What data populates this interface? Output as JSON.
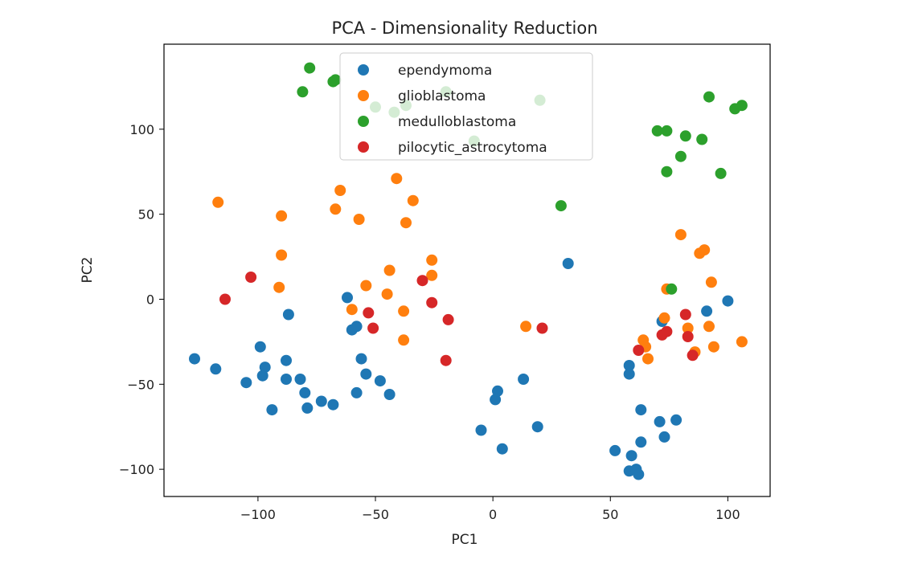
{
  "chart_data": {
    "type": "scatter",
    "title": "PCA - Dimensionality Reduction",
    "xlabel": "PC1",
    "ylabel": "PC2",
    "xlim": [
      -140,
      118
    ],
    "ylim": [
      -116,
      150
    ],
    "xticks": [
      -100,
      -50,
      0,
      50,
      100
    ],
    "yticks": [
      -100,
      -50,
      0,
      50,
      100
    ],
    "xtick_labels": [
      "−100",
      "−50",
      "0",
      "50",
      "100"
    ],
    "ytick_labels": [
      "−100",
      "−50",
      "0",
      "50",
      "100"
    ],
    "grid": false,
    "legend_position": "upper-center",
    "series": [
      {
        "name": "ependymoma",
        "color": "#1f77b4",
        "points": [
          [
            -127,
            -35
          ],
          [
            -118,
            -41
          ],
          [
            -105,
            -49
          ],
          [
            -99,
            -28
          ],
          [
            -98,
            -45
          ],
          [
            -97,
            -40
          ],
          [
            -94,
            -65
          ],
          [
            -88,
            -36
          ],
          [
            -88,
            -47
          ],
          [
            -87,
            -9
          ],
          [
            -82,
            -47
          ],
          [
            -80,
            -55
          ],
          [
            -79,
            -64
          ],
          [
            -73,
            -60
          ],
          [
            -68,
            -62
          ],
          [
            -62,
            1
          ],
          [
            -60,
            -18
          ],
          [
            -58,
            -16
          ],
          [
            -58,
            -55
          ],
          [
            -56,
            -35
          ],
          [
            -54,
            -44
          ],
          [
            -48,
            -48
          ],
          [
            -44,
            -56
          ],
          [
            -5,
            -77
          ],
          [
            1,
            -59
          ],
          [
            2,
            -54
          ],
          [
            4,
            -88
          ],
          [
            13,
            -47
          ],
          [
            19,
            -75
          ],
          [
            32,
            21
          ],
          [
            52,
            -89
          ],
          [
            58,
            -39
          ],
          [
            58,
            -44
          ],
          [
            58,
            -101
          ],
          [
            59,
            -92
          ],
          [
            61,
            -100
          ],
          [
            62,
            -103
          ],
          [
            63,
            -65
          ],
          [
            63,
            -84
          ],
          [
            71,
            -72
          ],
          [
            72,
            -13
          ],
          [
            73,
            -81
          ],
          [
            78,
            -71
          ],
          [
            91,
            -7
          ],
          [
            100,
            -1
          ]
        ]
      },
      {
        "name": "glioblastoma",
        "color": "#ff7f0e",
        "points": [
          [
            -117,
            57
          ],
          [
            -90,
            49
          ],
          [
            -91,
            7
          ],
          [
            -90,
            26
          ],
          [
            -67,
            53
          ],
          [
            -65,
            64
          ],
          [
            -60,
            -6
          ],
          [
            -57,
            47
          ],
          [
            -54,
            8
          ],
          [
            -45,
            3
          ],
          [
            -44,
            17
          ],
          [
            -41,
            71
          ],
          [
            -38,
            -7
          ],
          [
            -38,
            -24
          ],
          [
            -37,
            45
          ],
          [
            -34,
            58
          ],
          [
            -26,
            23
          ],
          [
            -26,
            14
          ],
          [
            14,
            -16
          ],
          [
            64,
            -24
          ],
          [
            65,
            -28
          ],
          [
            66,
            -35
          ],
          [
            73,
            -11
          ],
          [
            74,
            6
          ],
          [
            80,
            38
          ],
          [
            83,
            -17
          ],
          [
            86,
            -31
          ],
          [
            88,
            27
          ],
          [
            90,
            29
          ],
          [
            92,
            -16
          ],
          [
            93,
            10
          ],
          [
            94,
            -28
          ],
          [
            106,
            -25
          ]
        ]
      },
      {
        "name": "medulloblastoma",
        "color": "#2ca02c",
        "points": [
          [
            -81,
            122
          ],
          [
            -78,
            136
          ],
          [
            -68,
            128
          ],
          [
            -67,
            129
          ],
          [
            -50,
            113
          ],
          [
            -42,
            110
          ],
          [
            -37,
            114
          ],
          [
            -20,
            122
          ],
          [
            -8,
            93
          ],
          [
            20,
            117
          ],
          [
            29,
            55
          ],
          [
            70,
            99
          ],
          [
            74,
            99
          ],
          [
            74,
            75
          ],
          [
            76,
            6
          ],
          [
            80,
            84
          ],
          [
            82,
            96
          ],
          [
            89,
            94
          ],
          [
            92,
            119
          ],
          [
            97,
            74
          ],
          [
            103,
            112
          ],
          [
            106,
            114
          ]
        ]
      },
      {
        "name": "pilocytic_astrocytoma",
        "color": "#d62728",
        "points": [
          [
            -114,
            0
          ],
          [
            -103,
            13
          ],
          [
            -53,
            -8
          ],
          [
            -51,
            -17
          ],
          [
            -30,
            11
          ],
          [
            -26,
            -2
          ],
          [
            -20,
            -36
          ],
          [
            -19,
            -12
          ],
          [
            21,
            -17
          ],
          [
            62,
            -30
          ],
          [
            72,
            -21
          ],
          [
            74,
            -19
          ],
          [
            82,
            -9
          ],
          [
            83,
            -22
          ],
          [
            85,
            -33
          ]
        ]
      }
    ]
  }
}
